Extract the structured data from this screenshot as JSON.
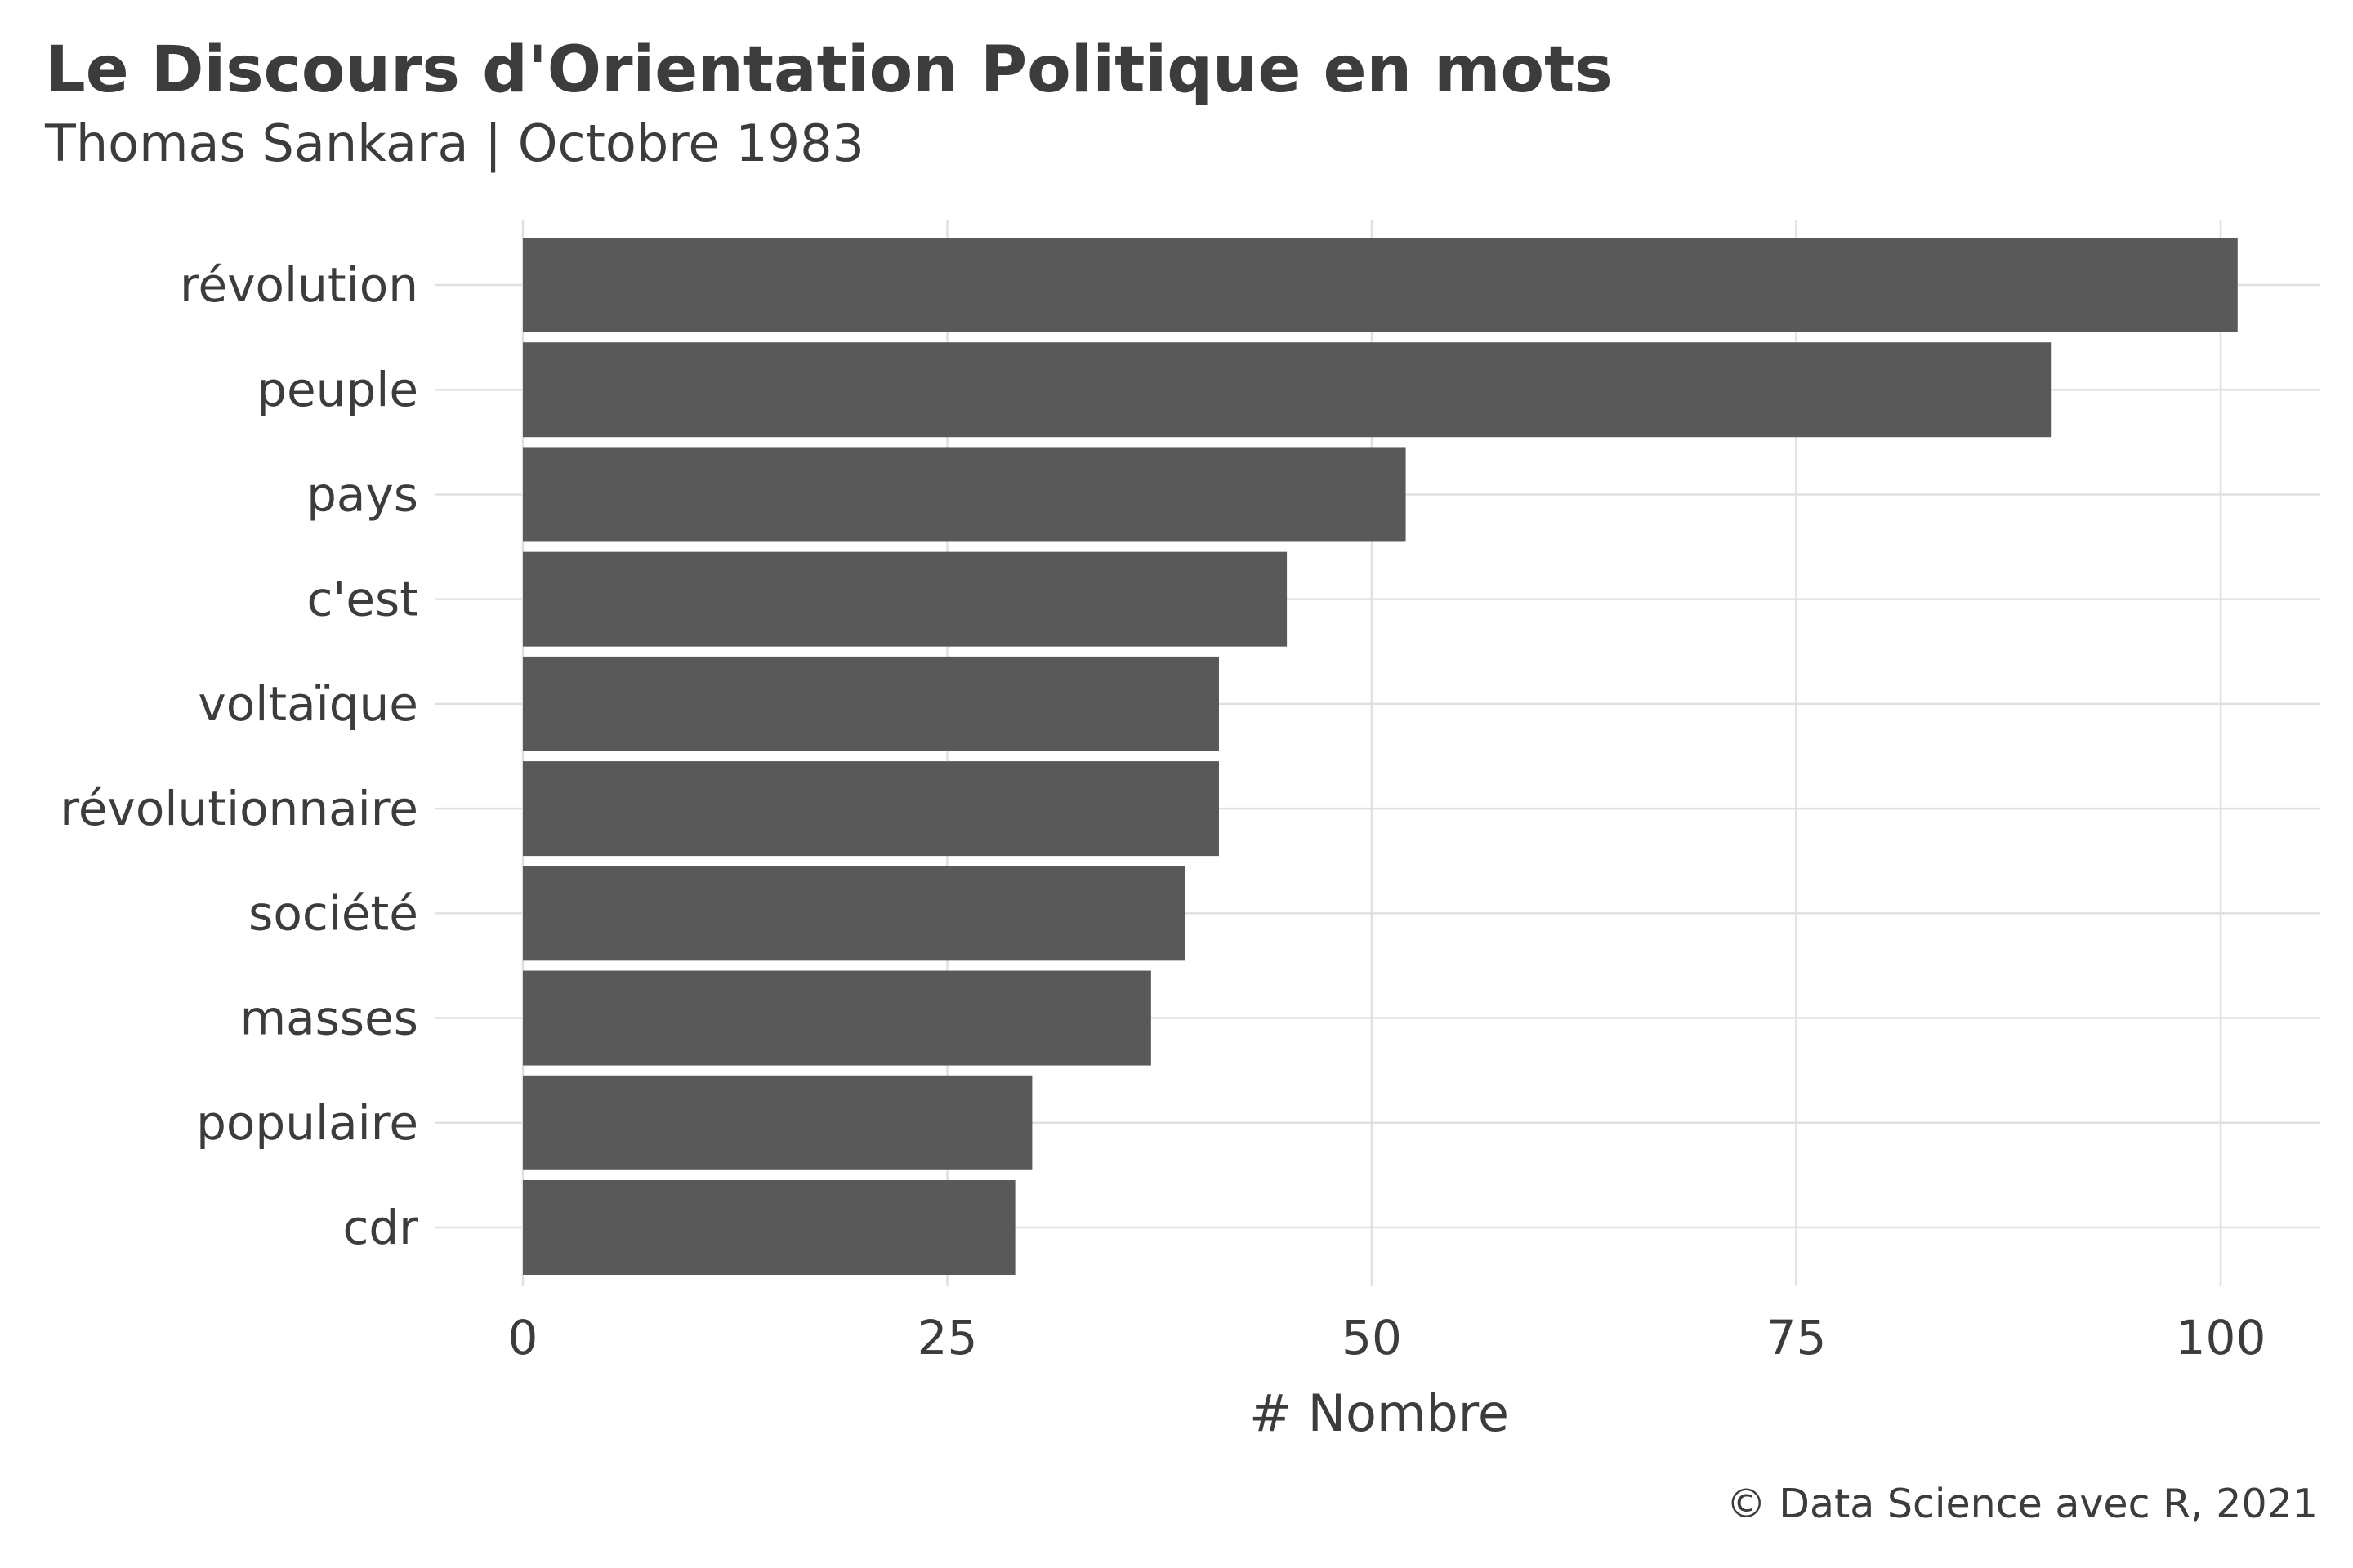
{
  "chart_data": {
    "type": "bar",
    "orientation": "horizontal",
    "title": "Le Discours d'Orientation Politique en mots",
    "subtitle": "Thomas Sankara | Octobre 1983",
    "caption": "© Data Science avec R, 2021",
    "xlabel": "# Nombre",
    "ylabel": "",
    "categories": [
      "révolution",
      "peuple",
      "pays",
      "c'est",
      "voltaïque",
      "révolutionnaire",
      "société",
      "masses",
      "populaire",
      "cdr"
    ],
    "values": [
      101,
      90,
      52,
      45,
      41,
      41,
      39,
      37,
      30,
      29
    ],
    "xlim": [
      0,
      106
    ],
    "xticks": [
      0,
      25,
      50,
      75,
      100
    ],
    "grid": true,
    "legend": "none",
    "bar_color": "#595959",
    "text_color": "#3c3c3c",
    "grid_color": "#e0e0e0"
  }
}
